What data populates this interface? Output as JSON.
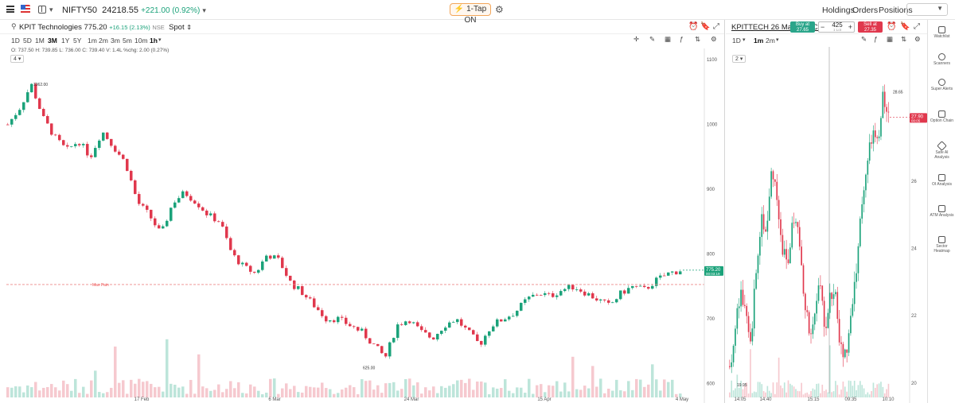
{
  "topbar": {
    "symbol": "NIFTY50",
    "price": "24218.55",
    "change": "+221.00 (0.92%)",
    "tapon_label": "1-Tap ON",
    "nav": [
      "Holdings",
      "Orders",
      "Positions"
    ]
  },
  "left_chart": {
    "name": "KPIT Technologies",
    "ltp": "775.20",
    "change": "+16.15 (2.13%)",
    "exchange": "NSE",
    "type": "Spot",
    "timeframes": [
      "1D",
      "5D",
      "1M",
      "3M",
      "1Y",
      "5Y",
      "1m",
      "2m",
      "3m",
      "5m",
      "10m",
      "1h"
    ],
    "selected_timeframes": [
      "3M",
      "1h"
    ],
    "ohlc": "O: 737.50  H: 739.85  L: 736.00  C: 739.40  V: 1.4L  %chg: 2.00 (0.27%)",
    "indicator_count": "4",
    "price_tag": "775.20",
    "price_tag_sub": "00:03:19",
    "max_pain_label": "Max Pain",
    "high_label": "1062.00",
    "low_label": "625.00"
  },
  "right_chart": {
    "name": "KPITTECH 26 May 800 CE",
    "timeframes": [
      "1D",
      "1m",
      "2m"
    ],
    "buy_label": "Buy at",
    "buy_price": "27.65",
    "sell_label": "Sell at",
    "sell_price": "27.35",
    "qty": "425",
    "qty_unit": "1 Lot",
    "indicator_count": "2",
    "price_tag": "27.90",
    "price_tag_sub": "00:05",
    "high_label": "28.65",
    "low_label": "19.95"
  },
  "sidebar": [
    {
      "label": "Watchlist",
      "icon": "watchlist-icon"
    },
    {
      "label": "Scanners",
      "icon": "scanner-icon"
    },
    {
      "label": "Super Alerts",
      "icon": "alert-icon"
    },
    {
      "label": "Option Chain",
      "icon": "option-chain-icon"
    },
    {
      "label": "Safe AI Analysis",
      "icon": "ai-icon"
    },
    {
      "label": "OI Analysis",
      "icon": "oi-icon"
    },
    {
      "label": "ATM Analysis",
      "icon": "atm-icon"
    },
    {
      "label": "Sector Heatmap",
      "icon": "heatmap-icon"
    }
  ],
  "chart_data": [
    {
      "type": "candlestick",
      "title": "KPIT Technologies",
      "x_labels": [
        "17 Feb",
        "6 Mar",
        "24 Mar",
        "15 Apr",
        "4 May"
      ],
      "y_ticks": [
        1100,
        1000,
        900,
        800,
        700,
        600
      ],
      "ylim": [
        575,
        1110
      ],
      "line": [
        1000,
        1025,
        1062,
        1010,
        980,
        960,
        975,
        950,
        990,
        965,
        940,
        880,
        860,
        830,
        880,
        895,
        880,
        860,
        850,
        800,
        780,
        770,
        800,
        790,
        755,
        740,
        720,
        700,
        700,
        690,
        680,
        660,
        640,
        690,
        700,
        680,
        670,
        690,
        700,
        680,
        660,
        690,
        700,
        710,
        730,
        740,
        735,
        745,
        750,
        740,
        730,
        720,
        740,
        750,
        745,
        760,
        770,
        775
      ],
      "max_pain": 753
    },
    {
      "type": "candlestick",
      "title": "KPITTECH 26 May 800 CE",
      "x_labels": [
        "14:05",
        "14:40",
        "15:15",
        "09:35",
        "10:10"
      ],
      "y_ticks": [
        26,
        24,
        22,
        20
      ],
      "ylim": [
        19.5,
        29.8
      ],
      "line": [
        20.5,
        21.5,
        22.8,
        22.0,
        21.0,
        23.5,
        25.0,
        24.5,
        26.5,
        25.5,
        24.0,
        23.5,
        25.0,
        24.5,
        22.5,
        21.5,
        22.0,
        23.0,
        21.5,
        22.8,
        22.5,
        21.0,
        20.8,
        22.0,
        23.5,
        25.5,
        26.5,
        27.5,
        27.0,
        28.65,
        27.9
      ]
    }
  ]
}
